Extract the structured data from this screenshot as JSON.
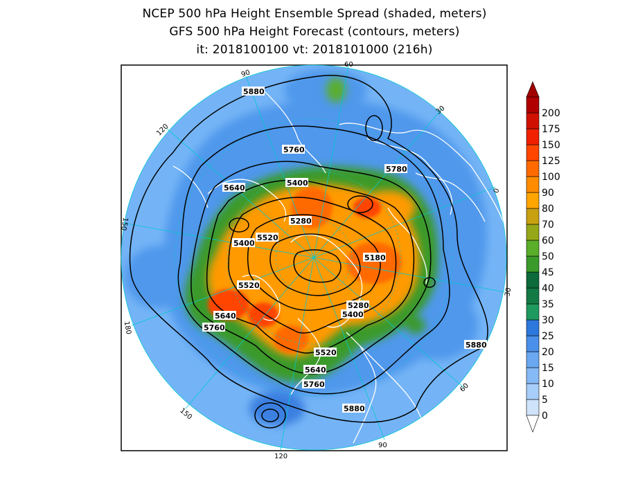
{
  "title": {
    "line1": "NCEP 500 hPa Height Ensemble Spread (shaded, meters)",
    "line2": "GFS 500 hPa Height Forecast (contours, meters)",
    "line3": "it: 2018100100      vt: 2018101000 (216h)"
  },
  "map": {
    "projection": "polar-stereographic-north",
    "longitude_labels": [
      "60",
      "30",
      "0",
      "30",
      "60",
      "90",
      "120",
      "150",
      "180",
      "150",
      "120",
      "90"
    ],
    "contour_labels": [
      "5880",
      "5760",
      "5780",
      "5640",
      "5400",
      "5280",
      "5520",
      "5400",
      "5180",
      "5520",
      "5640",
      "5760",
      "5280",
      "5400",
      "5520",
      "5640",
      "5760",
      "5880",
      "5880"
    ],
    "colors": {
      "ocean_light": "#74b4f6",
      "land_blue": "#4f98ec",
      "contour": "#000000",
      "coastline": "#ffffff",
      "grid": "#00c8d0"
    }
  },
  "colorbar": {
    "labels": [
      "0",
      "5",
      "10",
      "15",
      "20",
      "25",
      "30",
      "35",
      "40",
      "45",
      "50",
      "60",
      "70",
      "80",
      "90",
      "100",
      "125",
      "150",
      "175",
      "200"
    ],
    "colors": [
      "#cfe3fb",
      "#a7cdf9",
      "#86baf6",
      "#6aa8f2",
      "#4a90ea",
      "#2d78dd",
      "#1f9a5e",
      "#127a45",
      "#0d6a3a",
      "#3a9a2a",
      "#5aae2a",
      "#96a818",
      "#c8a010",
      "#ffa500",
      "#ff8c00",
      "#ff6a00",
      "#ff4500",
      "#f02000",
      "#d01000",
      "#b00000"
    ],
    "under_color": "#ffffff",
    "over_color": "#a00000"
  }
}
